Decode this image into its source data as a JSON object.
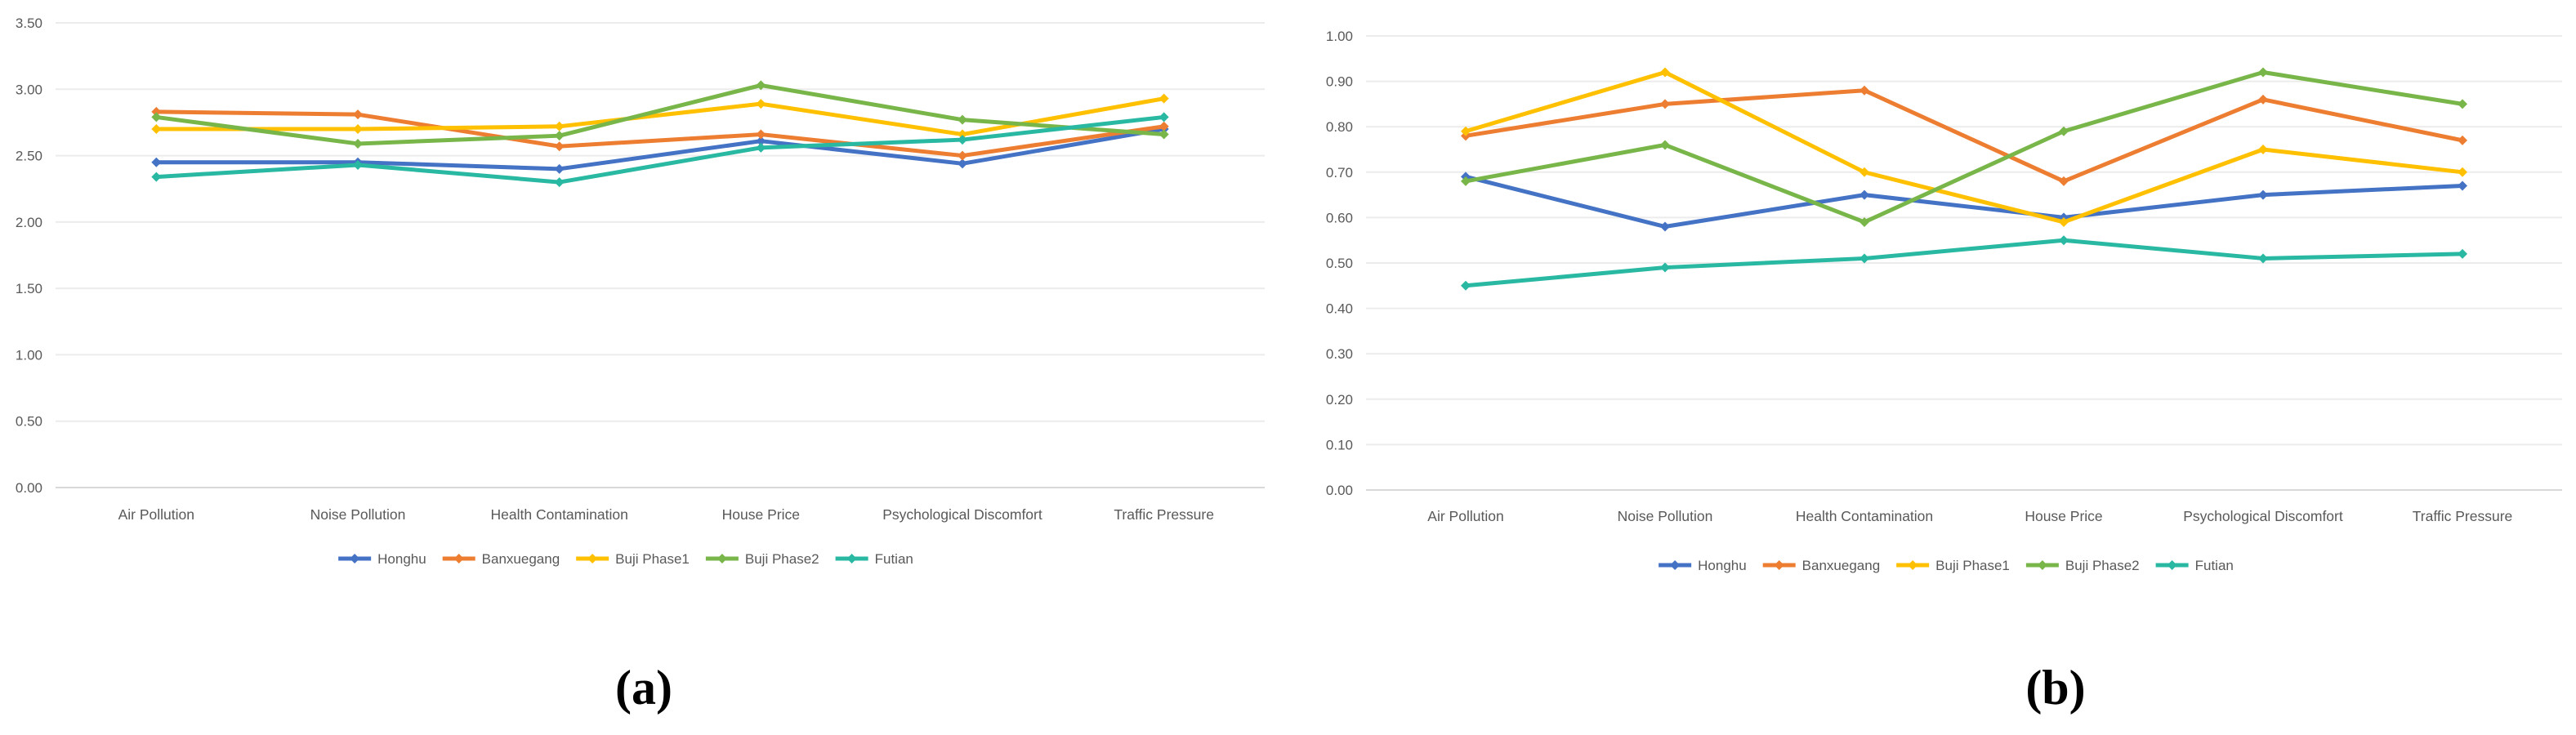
{
  "style": {
    "background": "#FFFFFF",
    "text_color": "#595959",
    "grid_color": "#ECECEC",
    "axis_color": "#D9D9D9",
    "series_colors": {
      "Honghu": "#4472C4",
      "Banxuegang": "#ED7D31",
      "Buji Phase1": "#FFC000",
      "Buji Phase2": "#79B64A",
      "Futian": "#29B8A2"
    }
  },
  "chart_data": [
    {
      "id": "a",
      "caption": "(a)",
      "type": "line",
      "title": "",
      "categories": [
        "Air Pollution",
        "Noise Pollution",
        "Health Contamination",
        "House Price",
        "Psychological Discomfort",
        "Traffic Pressure"
      ],
      "series": [
        {
          "name": "Honghu",
          "color": "#4472C4",
          "values": [
            2.45,
            2.45,
            2.4,
            2.61,
            2.44,
            2.7
          ]
        },
        {
          "name": "Banxuegang",
          "color": "#ED7D31",
          "values": [
            2.83,
            2.81,
            2.57,
            2.66,
            2.5,
            2.72
          ]
        },
        {
          "name": "Buji Phase1",
          "color": "#FFC000",
          "values": [
            2.7,
            2.7,
            2.72,
            2.89,
            2.66,
            2.93
          ]
        },
        {
          "name": "Buji Phase2",
          "color": "#79B64A",
          "values": [
            2.79,
            2.59,
            2.65,
            3.03,
            2.77,
            2.66
          ]
        },
        {
          "name": "Futian",
          "color": "#29B8A2",
          "values": [
            2.34,
            2.43,
            2.3,
            2.56,
            2.62,
            2.79
          ]
        }
      ],
      "ylim": [
        0,
        3.5
      ],
      "y_tick_labels": [
        "0.00",
        "0.50",
        "1.00",
        "1.50",
        "2.00",
        "2.50",
        "3.00",
        "3.50"
      ],
      "xlabel": "",
      "ylabel": "",
      "grid": "horizontal",
      "legend_position": "bottom",
      "marker_shape": "diamond"
    },
    {
      "id": "b",
      "caption": "(b)",
      "type": "line",
      "title": "",
      "categories": [
        "Air Pollution",
        "Noise Pollution",
        "Health Contamination",
        "House Price",
        "Psychological Discomfort",
        "Traffic Pressure"
      ],
      "series": [
        {
          "name": "Honghu",
          "color": "#4472C4",
          "values": [
            0.69,
            0.58,
            0.65,
            0.6,
            0.65,
            0.67
          ]
        },
        {
          "name": "Banxuegang",
          "color": "#ED7D31",
          "values": [
            0.78,
            0.85,
            0.88,
            0.68,
            0.86,
            0.77
          ]
        },
        {
          "name": "Buji Phase1",
          "color": "#FFC000",
          "values": [
            0.79,
            0.92,
            0.7,
            0.59,
            0.75,
            0.7
          ]
        },
        {
          "name": "Buji Phase2",
          "color": "#79B64A",
          "values": [
            0.68,
            0.76,
            0.59,
            0.79,
            0.92,
            0.85
          ]
        },
        {
          "name": "Futian",
          "color": "#29B8A2",
          "values": [
            0.45,
            0.49,
            0.51,
            0.55,
            0.51,
            0.52
          ]
        }
      ],
      "ylim": [
        0,
        1.0
      ],
      "y_tick_labels": [
        "0.00",
        "0.10",
        "0.20",
        "0.30",
        "0.40",
        "0.50",
        "0.60",
        "0.70",
        "0.80",
        "0.90",
        "1.00"
      ],
      "xlabel": "",
      "ylabel": "",
      "grid": "horizontal",
      "legend_position": "bottom",
      "marker_shape": "diamond"
    }
  ]
}
